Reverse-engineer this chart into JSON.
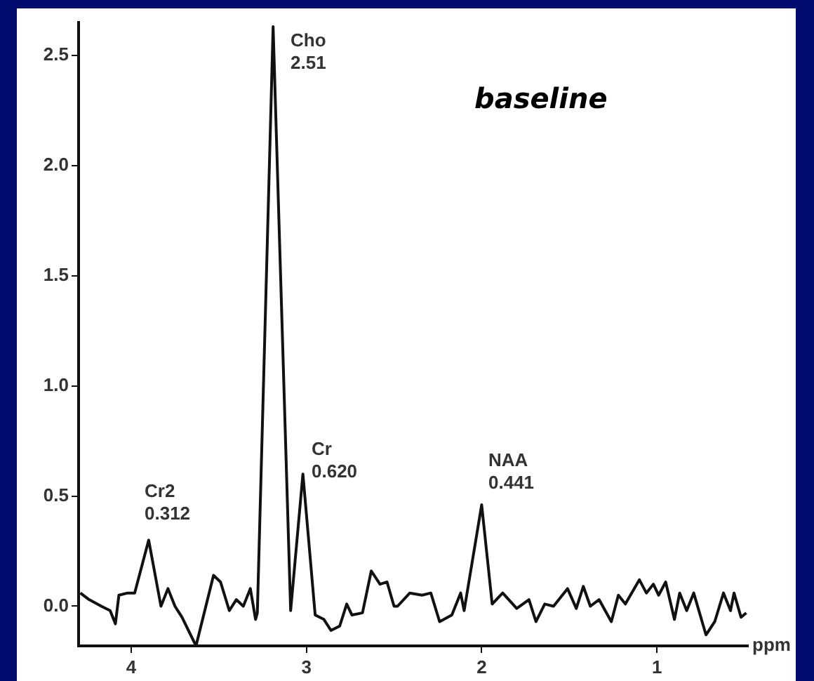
{
  "chart_data": {
    "type": "line",
    "title": "baseline",
    "xlabel": "ppm",
    "x": [
      4.29,
      4.24,
      4.17,
      4.12,
      4.09,
      4.07,
      4.02,
      3.98,
      3.9,
      3.83,
      3.79,
      3.75,
      3.71,
      3.63,
      3.53,
      3.49,
      3.44,
      3.4,
      3.36,
      3.32,
      3.29,
      3.28,
      3.19,
      3.09,
      3.02,
      2.95,
      2.9,
      2.86,
      2.81,
      2.77,
      2.74,
      2.68,
      2.63,
      2.58,
      2.54,
      2.5,
      2.48,
      2.41,
      2.34,
      2.29,
      2.24,
      2.17,
      2.12,
      2.1,
      2.0,
      1.94,
      1.88,
      1.8,
      1.73,
      1.69,
      1.64,
      1.59,
      1.51,
      1.46,
      1.42,
      1.38,
      1.33,
      1.26,
      1.22,
      1.18,
      1.1,
      1.06,
      1.02,
      0.99,
      0.95,
      0.9,
      0.87,
      0.83,
      0.79,
      0.72,
      0.67,
      0.62,
      0.58,
      0.56,
      0.52,
      0.49
    ],
    "series": [
      {
        "color": "#111111",
        "values": [
          0.06,
          0.03,
          0,
          -0.02,
          -0.08,
          0.05,
          0.06,
          0.06,
          0.3,
          0,
          0.08,
          0,
          -0.05,
          -0.18,
          0.14,
          0.11,
          -0.02,
          0.03,
          0,
          0.08,
          -0.06,
          -0.03,
          2.63,
          -0.02,
          0.6,
          -0.04,
          -0.06,
          -0.11,
          -0.09,
          0.01,
          -0.04,
          -0.03,
          0.16,
          0.1,
          0.11,
          0,
          0,
          0.06,
          0.05,
          0.06,
          -0.07,
          -0.04,
          0.06,
          -0.02,
          0.46,
          0.01,
          0.06,
          -0.01,
          0.03,
          -0.07,
          0.01,
          0,
          0.08,
          -0.01,
          0.09,
          0,
          0.03,
          -0.07,
          0.05,
          0.01,
          0.12,
          0.06,
          0.1,
          0.05,
          0.11,
          -0.06,
          0.06,
          -0.02,
          0.06,
          -0.13,
          -0.07,
          0.06,
          -0.02,
          0.06,
          -0.05,
          -0.03
        ]
      }
    ],
    "xlim": [
      4.3,
      0.48
    ],
    "xticks": [
      4,
      3,
      2,
      1
    ],
    "ylim": [
      -0.18,
      2.65
    ],
    "yticks": [
      {
        "value": 0,
        "label": "0.0"
      },
      {
        "value": 0.5,
        "label": "0.5"
      },
      {
        "value": 1,
        "label": "1.0"
      },
      {
        "value": 1.5,
        "label": "1.5"
      },
      {
        "value": 2,
        "label": "2.0"
      },
      {
        "value": 2.5,
        "label": "2.5"
      }
    ],
    "annotations": [
      "Cho\n2.51",
      "Cr2\n0.312",
      "Cr\n0.620",
      "NAA\n0.441"
    ],
    "grid": false,
    "legend": false,
    "marker": "none",
    "line_style": "solid"
  }
}
